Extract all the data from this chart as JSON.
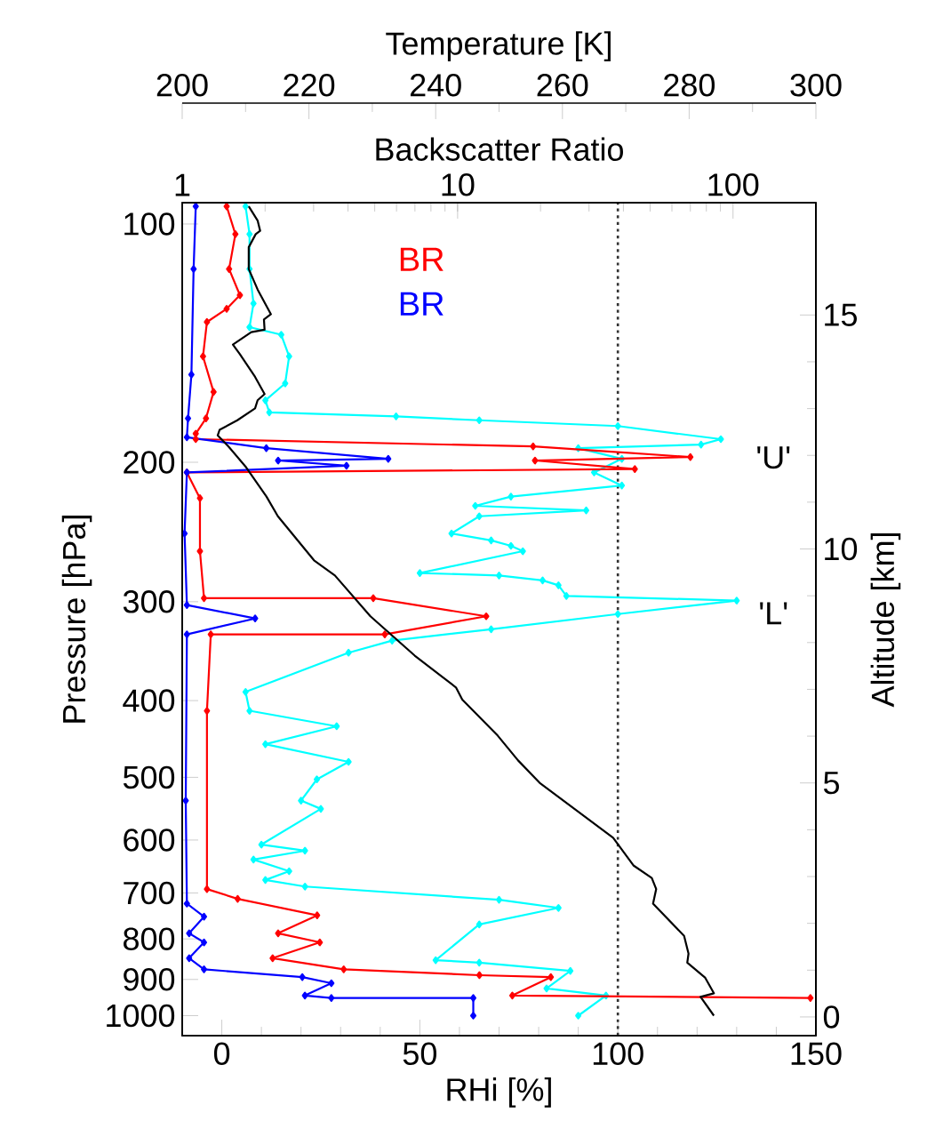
{
  "chart_data": [
    {
      "type": "line",
      "xlabel": "RHi [%]",
      "ylabel": "Pressure [hPa]",
      "y2label": "Altitude [km]",
      "xlim": [
        -10,
        150
      ],
      "xticks": [
        0,
        50,
        100,
        150
      ],
      "ylim": [
        1060,
        94
      ],
      "yticks": [
        100,
        200,
        300,
        400,
        500,
        600,
        700,
        800,
        900,
        1000
      ],
      "y2lim": [
        -0.4,
        17.4
      ],
      "y2ticks": [
        0,
        5,
        10,
        15
      ],
      "log": "y",
      "series": [
        {
          "color": "#00ffff",
          "marker": "diamond",
          "x": [
            6,
            7,
            7,
            8,
            7,
            15,
            17,
            16,
            11,
            12,
            44,
            65,
            100,
            126,
            121,
            90,
            101,
            94,
            101,
            73,
            64,
            92,
            65,
            58,
            68,
            73,
            76,
            50,
            70,
            81,
            85,
            87,
            130,
            100,
            68,
            43,
            32,
            6,
            7,
            29,
            11,
            32,
            24,
            20,
            25,
            10,
            21,
            8,
            17,
            11,
            21,
            70,
            85,
            65,
            54,
            65,
            88,
            82,
            97,
            90
          ],
          "values": [
            95,
            103,
            114,
            126,
            135,
            138,
            147,
            159,
            167,
            173,
            175,
            177,
            180,
            187,
            190,
            192,
            198,
            206,
            214,
            221,
            227,
            230,
            234,
            246,
            251,
            255,
            259,
            276,
            278,
            282,
            286,
            295,
            299,
            311,
            325,
            336,
            348,
            390,
            412,
            431,
            454,
            478,
            503,
            535,
            548,
            608,
            619,
            635,
            657,
            674,
            687,
            714,
            731,
            767,
            851,
            857,
            878,
            924,
            943,
            1000
          ]
        }
      ],
      "ref_lines": [
        {
          "axis": "x",
          "value": 100,
          "line_style": "dotted",
          "color": "#333333"
        }
      ],
      "annotations": [
        "'U'",
        "'L'"
      ]
    },
    {
      "type": "line",
      "xlabel": "Backscatter Ratio",
      "xlim": [
        1,
        200
      ],
      "xticks": [
        1,
        10,
        100
      ],
      "ylim": [
        1060,
        94
      ],
      "log": "xy",
      "tick_labels": "x",
      "legend": "top",
      "series": [
        {
          "name": "BR",
          "color": "#ff0000",
          "marker": "diamond",
          "x": [
            1.45,
            1.56,
            1.48,
            1.62,
            1.45,
            1.23,
            1.19,
            1.3,
            1.22,
            1.12,
            1.12,
            18.8,
            70,
            19.1,
            44,
            1.04,
            1.16,
            1.16,
            1.2,
            4.94,
            12.7,
            5.44,
            1.27,
            1.23,
            1.23,
            1.59,
            3.09,
            2.23,
            3.16,
            2.13,
            3.86,
            12.0,
            21.8,
            15.8,
            191
          ],
          "values": [
            95,
            103,
            114,
            123,
            128,
            133,
            147,
            163,
            176,
            184,
            187,
            191,
            197,
            199,
            204,
            206,
            222,
            259,
            297,
            297,
            313,
            330,
            330,
            412,
            692,
            712,
            747,
            787,
            808,
            846,
            874,
            889,
            894,
            943,
            950
          ]
        },
        {
          "name": "BR",
          "color": "#0000ff",
          "marker": "diamond",
          "x": [
            1.12,
            1.1,
            1.08,
            1.05,
            1.04,
            2.02,
            5.6,
            2.23,
            3.95,
            1.04,
            1.02,
            1.04,
            1.84,
            1.04,
            1.03,
            1.04,
            1.2,
            1.06,
            1.2,
            1.06,
            1.2,
            2.73,
            3.48,
            2.79,
            3.48,
            11.4,
            11.4
          ],
          "values": [
            95,
            114,
            155,
            176,
            186,
            192,
            198,
            199,
            202,
            206,
            246,
            303,
            315,
            330,
            535,
            722,
            750,
            787,
            808,
            846,
            874,
            894,
            910,
            943,
            950,
            950,
            1000
          ]
        }
      ]
    },
    {
      "type": "line",
      "xlabel": "Temperature [K]",
      "xlim": [
        200,
        300
      ],
      "xticks": [
        200,
        220,
        240,
        260,
        280,
        300
      ],
      "ylim": [
        1060,
        94
      ],
      "log": "y",
      "tick_labels": "x",
      "series": [
        {
          "color": "#000000",
          "marker": "none",
          "x": [
            210.5,
            211.9,
            212.3,
            211.6,
            210.5,
            210.5,
            211.9,
            214.0,
            212.9,
            213.0,
            210.9,
            208.0,
            209.1,
            211.5,
            213.0,
            211.9,
            211.5,
            208.7,
            205.9,
            205.6,
            207.3,
            210.1,
            213.3,
            215.1,
            220.8,
            224.1,
            229.7,
            236.7,
            243.2,
            244.2,
            249.8,
            253.0,
            256.4,
            268.0,
            271.2,
            274.1,
            274.8,
            274.3,
            279.2,
            279.9,
            279.7,
            282.5,
            283.9,
            281.8,
            283.9
          ],
          "values": [
            95,
            99,
            102,
            103,
            107,
            114,
            121,
            130,
            132,
            136,
            137,
            142,
            146,
            156,
            164,
            167,
            171,
            177,
            182,
            185,
            191,
            203,
            221,
            234,
            266,
            278,
            313,
            351,
            385,
            399,
            443,
            476,
            508,
            596,
            646,
            670,
            692,
            722,
            793,
            835,
            857,
            895,
            937,
            947,
            1000
          ]
        }
      ]
    }
  ]
}
